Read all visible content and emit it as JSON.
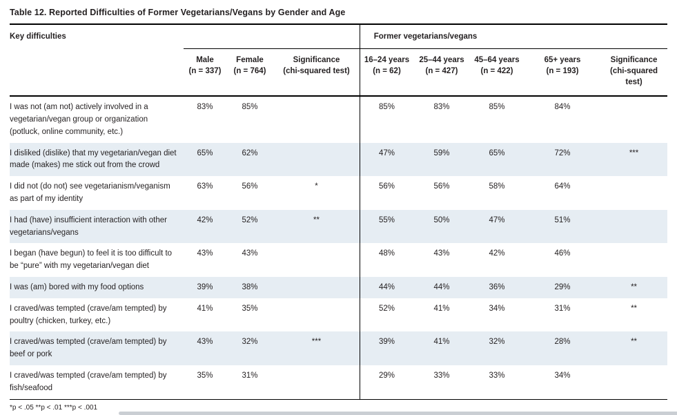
{
  "title": "Table 12. Reported Difficulties of Former Vegetarians/Vegans by Gender and Age",
  "table": {
    "key_column_header": "Key difficulties",
    "group_header": "Former vegetarians/vegans",
    "columns": [
      {
        "label": "Male",
        "sub": "(n = 337)"
      },
      {
        "label": "Female",
        "sub": "(n = 764)"
      },
      {
        "label": "Significance",
        "sub": "(chi-squared test)"
      },
      {
        "label": "16–24 years",
        "sub": "(n = 62)"
      },
      {
        "label": "25–44 years",
        "sub": "(n = 427)"
      },
      {
        "label": "45–64 years",
        "sub": "(n = 422)"
      },
      {
        "label": "65+ years",
        "sub": "(n = 193)"
      },
      {
        "label": "Significance",
        "sub": "(chi-squared test)"
      }
    ],
    "rows": [
      {
        "label": "I was not (am not) actively involved in a vegetarian/vegan group or organization (potluck, online community, etc.)",
        "values": [
          "83%",
          "85%",
          "",
          "85%",
          "83%",
          "85%",
          "84%",
          ""
        ],
        "shaded": false
      },
      {
        "label": "I disliked (dislike) that my vegetarian/vegan diet made (makes) me stick out from the crowd",
        "values": [
          "65%",
          "62%",
          "",
          "47%",
          "59%",
          "65%",
          "72%",
          "***"
        ],
        "shaded": true
      },
      {
        "label": "I did not (do not) see vegetarianism/veganism as part of my identity",
        "values": [
          "63%",
          "56%",
          "*",
          "56%",
          "56%",
          "58%",
          "64%",
          ""
        ],
        "shaded": false
      },
      {
        "label": "I had (have) insufficient interaction with other vegetarians/vegans",
        "values": [
          "42%",
          "52%",
          "**",
          "55%",
          "50%",
          "47%",
          "51%",
          ""
        ],
        "shaded": true
      },
      {
        "label": "I began (have begun) to feel it is too difficult to be “pure” with my vegetarian/vegan diet",
        "values": [
          "43%",
          "43%",
          "",
          "48%",
          "43%",
          "42%",
          "46%",
          ""
        ],
        "shaded": false
      },
      {
        "label": "I was (am) bored with my food options",
        "values": [
          "39%",
          "38%",
          "",
          "44%",
          "44%",
          "36%",
          "29%",
          "**"
        ],
        "shaded": true
      },
      {
        "label": "I craved/was tempted (crave/am tempted) by poultry (chicken, turkey, etc.)",
        "values": [
          "41%",
          "35%",
          "",
          "52%",
          "41%",
          "34%",
          "31%",
          "**"
        ],
        "shaded": false
      },
      {
        "label": "I craved/was tempted (crave/am tempted) by beef or pork",
        "values": [
          "43%",
          "32%",
          "***",
          "39%",
          "41%",
          "32%",
          "28%",
          "**"
        ],
        "shaded": true
      },
      {
        "label": "I craved/was tempted (crave/am tempted) by fish/seafood",
        "values": [
          "35%",
          "31%",
          "",
          "29%",
          "33%",
          "33%",
          "34%",
          ""
        ],
        "shaded": false
      }
    ]
  },
  "footnote": "*p < .05 **p < .01 ***p < .001"
}
